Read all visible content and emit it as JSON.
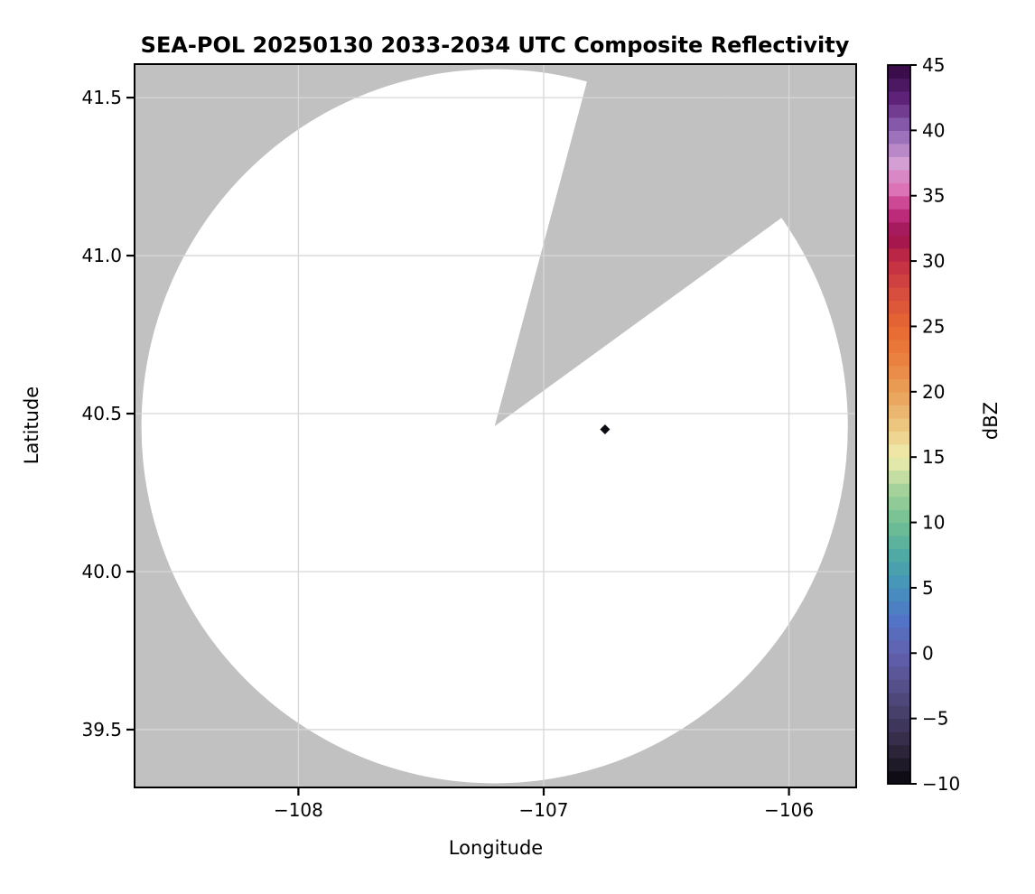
{
  "title": "SEA-POL 20250130 2033-2034 UTC Composite Reflectivity",
  "x_axis": {
    "label": "Longitude",
    "tick_labels": [
      "−108",
      "−107",
      "−106"
    ],
    "tick_values": [
      -108,
      -107,
      -106
    ],
    "range": [
      -108.668,
      -105.726
    ]
  },
  "y_axis": {
    "label": "Latitude",
    "tick_labels": [
      "41.5",
      "41.0",
      "40.5",
      "40.0",
      "39.5"
    ],
    "tick_values": [
      41.5,
      41.0,
      40.5,
      40.0,
      39.5
    ],
    "range": [
      39.317,
      41.606
    ]
  },
  "colorbar": {
    "label": "dBZ",
    "tick_labels": [
      "45",
      "40",
      "35",
      "30",
      "25",
      "20",
      "15",
      "10",
      "5",
      "0",
      "−5",
      "−10"
    ],
    "tick_values": [
      45,
      40,
      35,
      30,
      25,
      20,
      15,
      10,
      5,
      0,
      -5,
      -10
    ],
    "vmin": -10,
    "vmax": 45,
    "band_step_dbz": 1,
    "anchors": [
      {
        "v": -10,
        "c": "#060409"
      },
      {
        "v": -9,
        "c": "#191420"
      },
      {
        "v": -7.5,
        "c": "#2c2539"
      },
      {
        "v": -5,
        "c": "#443c64"
      },
      {
        "v": -2.5,
        "c": "#555089"
      },
      {
        "v": 0,
        "c": "#6260ae"
      },
      {
        "v": 2.5,
        "c": "#5374c6"
      },
      {
        "v": 5,
        "c": "#4592bd"
      },
      {
        "v": 7.5,
        "c": "#4fa9a4"
      },
      {
        "v": 10,
        "c": "#71bf92"
      },
      {
        "v": 12.5,
        "c": "#a5d29a"
      },
      {
        "v": 15,
        "c": "#f0edae"
      },
      {
        "v": 17.5,
        "c": "#ecc57e"
      },
      {
        "v": 20,
        "c": "#e9a058"
      },
      {
        "v": 22.5,
        "c": "#ea8140"
      },
      {
        "v": 25,
        "c": "#e76832"
      },
      {
        "v": 27.5,
        "c": "#d74d3e"
      },
      {
        "v": 30,
        "c": "#c22d43"
      },
      {
        "v": 32,
        "c": "#9c1150"
      },
      {
        "v": 34,
        "c": "#c53486"
      },
      {
        "v": 35.5,
        "c": "#dc73b6"
      },
      {
        "v": 37.5,
        "c": "#d49fd3"
      },
      {
        "v": 40,
        "c": "#9065b5"
      },
      {
        "v": 42.5,
        "c": "#5e2378"
      },
      {
        "v": 45,
        "c": "#32083f"
      }
    ]
  },
  "colors": {
    "no_data_gray": "#c1c1c1",
    "coverage_white": "#ffffff",
    "grid": "#d7d7d7",
    "spine": "#000000",
    "echo": "#0b0a12"
  },
  "chart_data": {
    "type": "radar_composite_reflectivity_map",
    "value_units": "dBZ",
    "value_range": [
      -10,
      45
    ],
    "grid": true,
    "radar_center": {
      "lon": -107.2,
      "lat": 40.46
    },
    "coverage_radius": {
      "lon_deg": 1.44,
      "lat_deg": 1.13
    },
    "blocked_sector_azimuth_deg": {
      "from": 15,
      "to": 54
    },
    "echoes": [
      {
        "lon": -106.75,
        "lat": 40.45,
        "approx_dbz": -9,
        "color": "#0b0a12",
        "marker": "diamond"
      }
    ]
  }
}
